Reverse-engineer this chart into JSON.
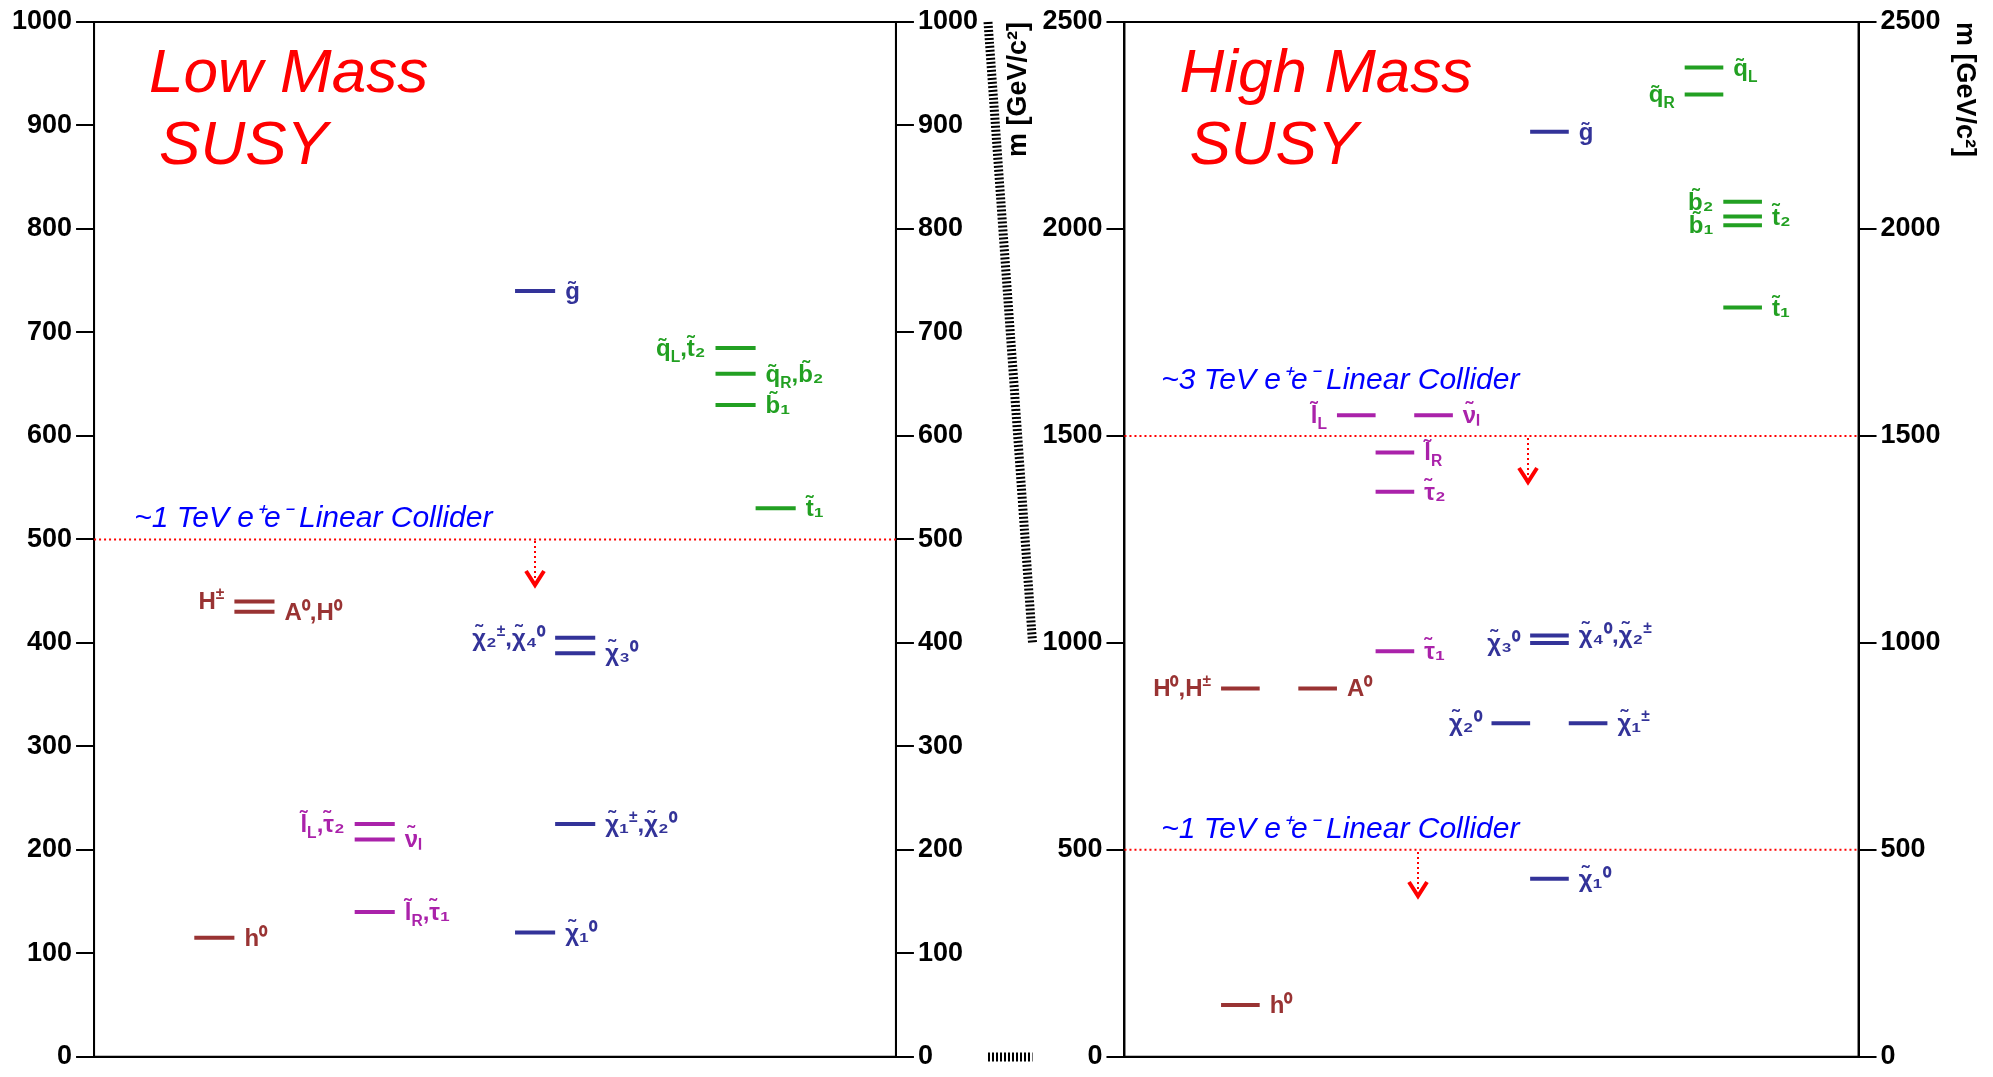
{
  "chart_data": [
    {
      "type": "line",
      "title": "Low Mass SUSY",
      "categories": [
        null,
        null,
        null,
        null,
        null,
        null,
        null,
        null,
        null,
        null,
        null,
        null,
        null,
        null,
        null,
        null,
        null,
        null,
        null,
        null
      ],
      "series": [
        {
          "name": "h⁰",
          "color": "#993333",
          "values": [
            null,
            null,
            115,
            115,
            null,
            null,
            null,
            null,
            null,
            null,
            null,
            null,
            null,
            null,
            null,
            null,
            null,
            null,
            null,
            null
          ]
        },
        {
          "name": "A⁰,H⁰",
          "color": "#993333",
          "values": [
            null,
            null,
            null,
            430,
            430,
            null,
            null,
            null,
            null,
            null,
            null,
            null,
            null,
            null,
            null,
            null,
            null,
            null,
            null,
            null
          ]
        },
        {
          "name": "H$^{±}$",
          "color": "#993333",
          "values": [
            null,
            null,
            null,
            440,
            440,
            null,
            null,
            null,
            null,
            null,
            null,
            null,
            null,
            null,
            null,
            null,
            null,
            null,
            null,
            null
          ]
        },
        {
          "name": "ν̃ₗ",
          "color": "#aa22aa",
          "values": [
            null,
            null,
            null,
            null,
            null,
            null,
            210,
            210,
            null,
            null,
            null,
            null,
            null,
            null,
            null,
            null,
            null,
            null,
            null,
            null
          ]
        },
        {
          "name": "l̃$_{L}$,τ̃₂",
          "color": "#aa22aa",
          "values": [
            null,
            null,
            null,
            null,
            null,
            null,
            225,
            225,
            null,
            null,
            null,
            null,
            null,
            null,
            null,
            null,
            null,
            null,
            null,
            null
          ]
        },
        {
          "name": "l̃$_{R}$,τ̃₁",
          "color": "#aa22aa",
          "values": [
            null,
            null,
            null,
            null,
            null,
            null,
            140,
            140,
            null,
            null,
            null,
            null,
            null,
            null,
            null,
            null,
            null,
            null,
            null,
            null
          ]
        },
        {
          "name": "χ̃₁⁰",
          "color": "#333399",
          "values": [
            null,
            null,
            null,
            null,
            null,
            null,
            null,
            null,
            null,
            null,
            120,
            120,
            null,
            null,
            null,
            null,
            null,
            null,
            null,
            null
          ]
        },
        {
          "name": "χ̃₁$^{±}$,χ̃₂⁰",
          "color": "#333399",
          "values": [
            null,
            null,
            null,
            null,
            null,
            null,
            null,
            null,
            null,
            null,
            null,
            225,
            225,
            null,
            null,
            null,
            null,
            null,
            null,
            null
          ]
        },
        {
          "name": "χ̃₃⁰",
          "color": "#333399",
          "values": [
            null,
            null,
            null,
            null,
            null,
            null,
            null,
            null,
            null,
            null,
            null,
            390,
            390,
            null,
            null,
            null,
            null,
            null,
            null,
            null
          ]
        },
        {
          "name": "χ̃₂$^{±}$,χ̃₄⁰",
          "color": "#333399",
          "values": [
            null,
            null,
            null,
            null,
            null,
            null,
            null,
            null,
            null,
            null,
            null,
            405,
            405,
            null,
            null,
            null,
            null,
            null,
            null,
            null
          ]
        },
        {
          "name": "g̃",
          "color": "#333399",
          "values": [
            null,
            null,
            null,
            null,
            null,
            null,
            null,
            null,
            null,
            null,
            740,
            740,
            null,
            null,
            null,
            null,
            null,
            null,
            null,
            null
          ]
        },
        {
          "name": "q̃$_{R}$,b̃₂",
          "color": "#22a022",
          "values": [
            null,
            null,
            null,
            null,
            null,
            null,
            null,
            null,
            null,
            null,
            null,
            null,
            null,
            null,
            null,
            660,
            660,
            null,
            null,
            null
          ]
        },
        {
          "name": "q̃$_{L}$,t̃₂",
          "color": "#22a022",
          "values": [
            null,
            null,
            null,
            null,
            null,
            null,
            null,
            null,
            null,
            null,
            null,
            null,
            null,
            null,
            null,
            685,
            685,
            null,
            null,
            null
          ]
        },
        {
          "name": "b̃₁",
          "color": "#22a022",
          "values": [
            null,
            null,
            null,
            null,
            null,
            null,
            null,
            null,
            null,
            null,
            null,
            null,
            null,
            null,
            null,
            630,
            630,
            null,
            null,
            null
          ]
        },
        {
          "name": "t̃₁",
          "color": "#22a022",
          "values": [
            null,
            null,
            null,
            null,
            null,
            null,
            null,
            null,
            null,
            null,
            null,
            null,
            null,
            null,
            null,
            null,
            530,
            530,
            null,
            null
          ]
        }
      ],
      "ylim": [
        0,
        1000
      ],
      "yticks": [
        0,
        100,
        200,
        300,
        400,
        500,
        600,
        700,
        800,
        900,
        1000
      ],
      "y2lim": [
        0,
        1000
      ],
      "y2ticks": [
        0,
        100,
        200,
        300,
        400,
        500,
        600,
        700,
        800,
        900,
        1000
      ],
      "ref_lines": [
        {
          "axis": "y",
          "value": 500,
          "label": "~1 TeV e⁺e⁻ Linear Collider",
          "color": "#ff0000",
          "line_style": "dotted"
        }
      ]
    },
    {
      "type": "line",
      "title": "High Mass SUSY",
      "ylabel": "m [GeV/c²]",
      "y2label": "m [GeV/c²]",
      "categories": [
        null,
        null,
        null,
        null,
        null,
        null,
        null,
        null,
        null,
        null,
        null,
        null,
        null,
        null,
        null,
        null,
        null,
        null,
        null
      ],
      "series": [
        {
          "name": "h⁰",
          "color": "#993333",
          "values": [
            null,
            null,
            125,
            125,
            null,
            null,
            null,
            null,
            null,
            null,
            null,
            null,
            null,
            null,
            null,
            null,
            null,
            null,
            null
          ]
        },
        {
          "name": "A⁰",
          "color": "#993333",
          "values": [
            null,
            null,
            null,
            null,
            890,
            890,
            null,
            null,
            null,
            null,
            null,
            null,
            null,
            null,
            null,
            null,
            null,
            null,
            null
          ]
        },
        {
          "name": "H⁰,H$^{±}$",
          "color": "#993333",
          "values": [
            null,
            null,
            890,
            890,
            null,
            null,
            null,
            null,
            null,
            null,
            null,
            null,
            null,
            null,
            null,
            null,
            null,
            null,
            null
          ]
        },
        {
          "name": "τ̃₁",
          "color": "#aa22aa",
          "values": [
            null,
            null,
            null,
            null,
            null,
            null,
            980,
            980,
            null,
            null,
            null,
            null,
            null,
            null,
            null,
            null,
            null,
            null,
            null
          ]
        },
        {
          "name": "τ̃₂",
          "color": "#aa22aa",
          "values": [
            null,
            null,
            null,
            null,
            null,
            null,
            1365,
            1365,
            null,
            null,
            null,
            null,
            null,
            null,
            null,
            null,
            null,
            null,
            null
          ]
        },
        {
          "name": "l̃$_{R}$",
          "color": "#aa22aa",
          "values": [
            null,
            null,
            null,
            null,
            null,
            null,
            1460,
            1460,
            null,
            null,
            null,
            null,
            null,
            null,
            null,
            null,
            null,
            null,
            null
          ]
        },
        {
          "name": "ν̃ₗ",
          "color": "#aa22aa",
          "values": [
            null,
            null,
            null,
            null,
            null,
            null,
            null,
            1550,
            1550,
            null,
            null,
            null,
            null,
            null,
            null,
            null,
            null,
            null,
            null
          ]
        },
        {
          "name": "l̃$_{L}$",
          "color": "#aa22aa",
          "values": [
            null,
            null,
            null,
            null,
            null,
            1550,
            1550,
            null,
            null,
            null,
            null,
            null,
            null,
            null,
            null,
            null,
            null,
            null,
            null
          ]
        },
        {
          "name": "χ̃₁⁰",
          "color": "#333399",
          "values": [
            null,
            null,
            null,
            null,
            null,
            null,
            null,
            null,
            null,
            null,
            430,
            430,
            null,
            null,
            null,
            null,
            null,
            null,
            null
          ]
        },
        {
          "name": "χ̃₁$^{±}$",
          "color": "#333399",
          "values": [
            null,
            null,
            null,
            null,
            null,
            null,
            null,
            null,
            null,
            null,
            null,
            806,
            806,
            null,
            null,
            null,
            null,
            null,
            null
          ]
        },
        {
          "name": "χ̃₂⁰",
          "color": "#333399",
          "values": [
            null,
            null,
            null,
            null,
            null,
            null,
            null,
            null,
            null,
            806,
            806,
            null,
            null,
            null,
            null,
            null,
            null,
            null,
            null
          ]
        },
        {
          "name": "χ̃₄⁰,χ̃₂$^{±}$",
          "color": "#333399",
          "values": [
            null,
            null,
            null,
            null,
            null,
            null,
            null,
            null,
            null,
            null,
            1018,
            1018,
            null,
            null,
            null,
            null,
            null,
            null,
            null
          ]
        },
        {
          "name": "χ̃₃⁰",
          "color": "#333399",
          "values": [
            null,
            null,
            null,
            null,
            null,
            null,
            null,
            null,
            null,
            null,
            1000,
            1000,
            null,
            null,
            null,
            null,
            null,
            null,
            null
          ]
        },
        {
          "name": "g̃",
          "color": "#333399",
          "values": [
            null,
            null,
            null,
            null,
            null,
            null,
            null,
            null,
            null,
            null,
            2235,
            2235,
            null,
            null,
            null,
            null,
            null,
            null,
            null
          ]
        },
        {
          "name": "t̃₁",
          "color": "#22a022",
          "values": [
            null,
            null,
            null,
            null,
            null,
            null,
            null,
            null,
            null,
            null,
            null,
            null,
            null,
            null,
            null,
            1810,
            1810,
            null,
            null
          ]
        },
        {
          "name": "t̃₂",
          "color": "#22a022",
          "values": [
            null,
            null,
            null,
            null,
            null,
            null,
            null,
            null,
            null,
            null,
            null,
            null,
            null,
            null,
            null,
            2030,
            2030,
            null,
            null
          ]
        },
        {
          "name": "b̃₂",
          "color": "#22a022",
          "values": [
            null,
            null,
            null,
            null,
            null,
            null,
            null,
            null,
            null,
            null,
            null,
            null,
            null,
            null,
            null,
            2066,
            2066,
            null,
            null
          ]
        },
        {
          "name": "b̃₁",
          "color": "#22a022",
          "values": [
            null,
            null,
            null,
            null,
            null,
            null,
            null,
            null,
            null,
            null,
            null,
            null,
            null,
            null,
            null,
            2009,
            2009,
            null,
            null
          ]
        },
        {
          "name": "q̃$_{L}$",
          "color": "#22a022",
          "values": [
            null,
            null,
            null,
            null,
            null,
            null,
            null,
            null,
            null,
            null,
            null,
            null,
            null,
            null,
            2390,
            2390,
            null,
            null,
            null
          ]
        },
        {
          "name": "q̃$_{R}$",
          "color": "#22a022",
          "values": [
            null,
            null,
            null,
            null,
            null,
            null,
            null,
            null,
            null,
            null,
            null,
            null,
            null,
            null,
            2325,
            2325,
            null,
            null,
            null
          ]
        }
      ],
      "ylim": [
        0,
        2500
      ],
      "yticks": [
        0,
        500,
        1000,
        1500,
        2000,
        2500
      ],
      "y2lim": [
        0,
        2500
      ],
      "y2ticks": [
        0,
        500,
        1000,
        1500,
        2000,
        2500
      ],
      "ref_lines": [
        {
          "axis": "y",
          "value": 1500,
          "label": "~3 TeV e⁺e⁻ Linear Collider",
          "color": "#ff0000",
          "line_style": "dotted"
        },
        {
          "axis": "y",
          "value": 500,
          "label": "~1 TeV e⁺e⁻ Linear Collider",
          "color": "#ff0000",
          "line_style": "dotted"
        }
      ]
    }
  ]
}
